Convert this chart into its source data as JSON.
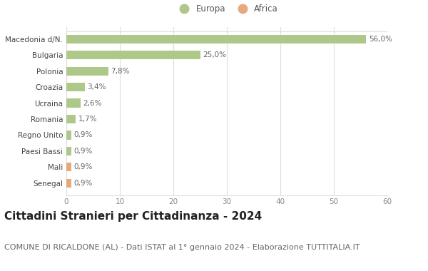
{
  "categories": [
    "Senegal",
    "Mali",
    "Paesi Bassi",
    "Regno Unito",
    "Romania",
    "Ucraina",
    "Croazia",
    "Polonia",
    "Bulgaria",
    "Macedonia d/N."
  ],
  "values": [
    0.9,
    0.9,
    0.9,
    0.9,
    1.7,
    2.6,
    3.4,
    7.8,
    25.0,
    56.0
  ],
  "labels": [
    "0,9%",
    "0,9%",
    "0,9%",
    "0,9%",
    "1,7%",
    "2,6%",
    "3,4%",
    "7,8%",
    "25,0%",
    "56,0%"
  ],
  "colors": [
    "#e8a87c",
    "#e8a87c",
    "#aec88a",
    "#aec88a",
    "#aec88a",
    "#aec88a",
    "#aec88a",
    "#aec88a",
    "#aec88a",
    "#aec88a"
  ],
  "europa_color": "#aec88a",
  "africa_color": "#e8a87c",
  "xlim": [
    0,
    60
  ],
  "xticks": [
    0,
    10,
    20,
    30,
    40,
    50,
    60
  ],
  "title": "Cittadini Stranieri per Cittadinanza - 2024",
  "subtitle": "COMUNE DI RICALDONE (AL) - Dati ISTAT al 1° gennaio 2024 - Elaborazione TUTTITALIA.IT",
  "title_fontsize": 11,
  "subtitle_fontsize": 8,
  "label_fontsize": 7.5,
  "tick_fontsize": 7.5,
  "legend_fontsize": 8.5,
  "background_color": "#ffffff",
  "grid_color": "#dddddd",
  "bar_height": 0.55
}
